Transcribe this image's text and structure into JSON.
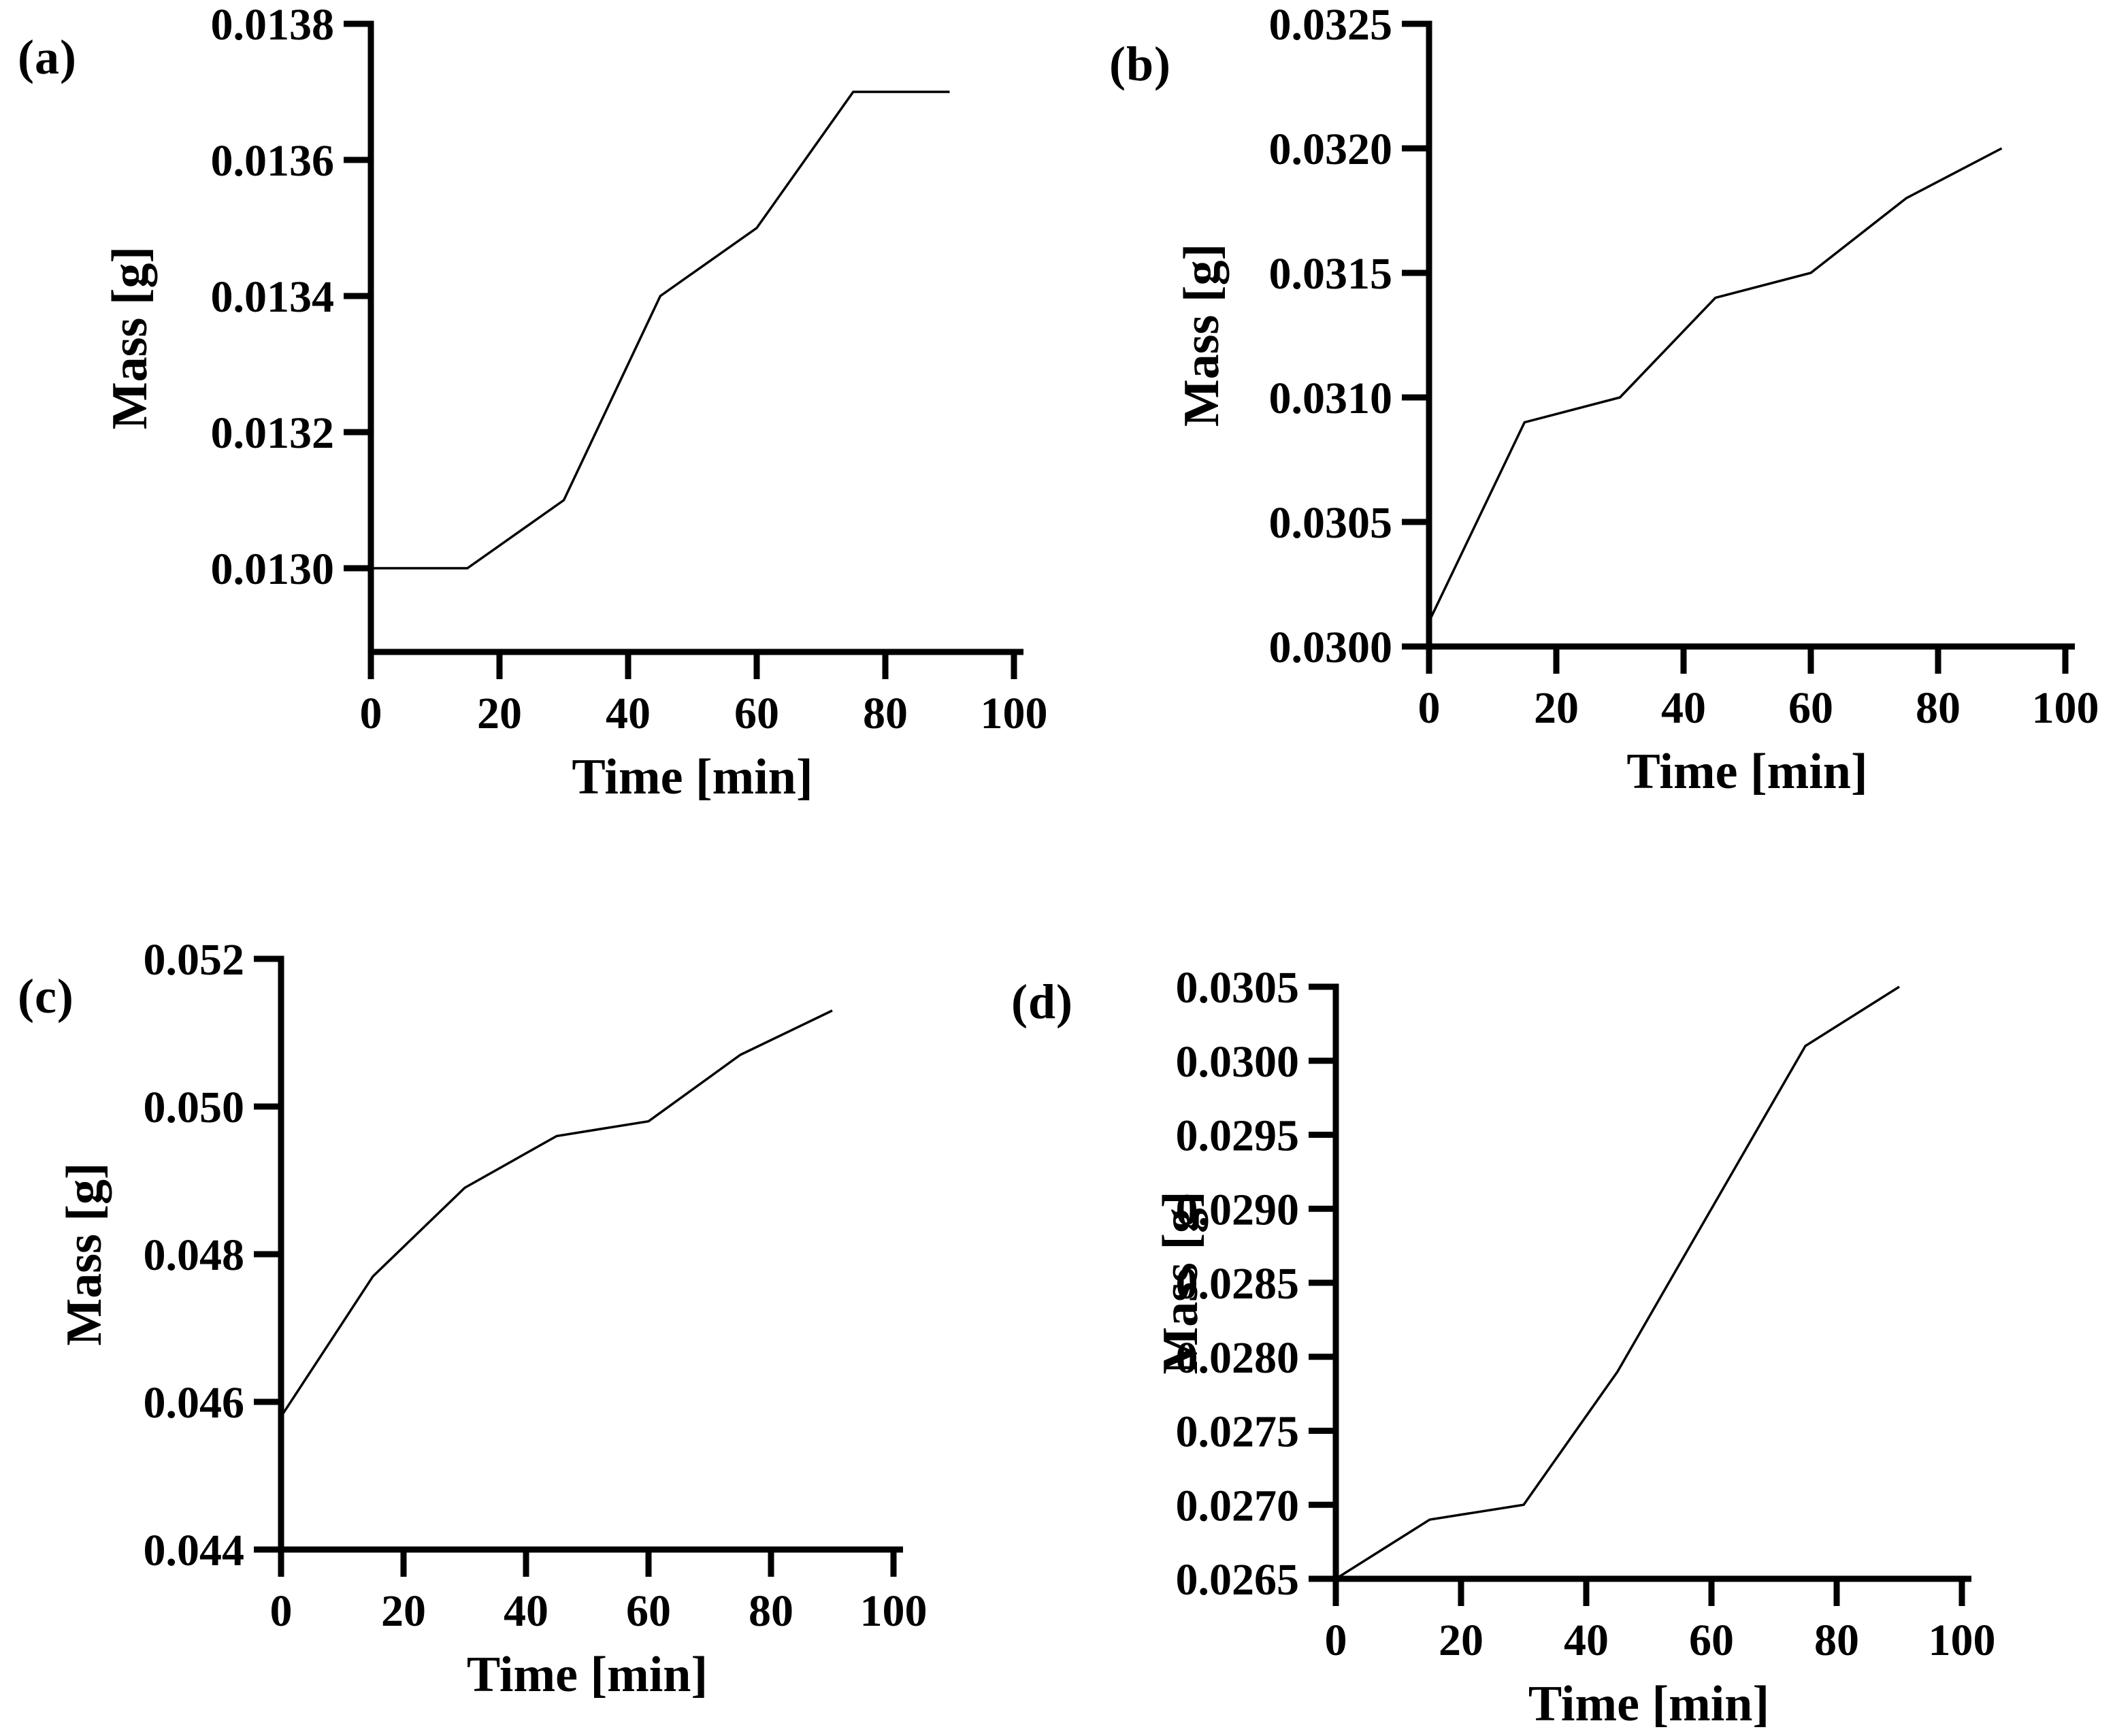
{
  "figure": {
    "background": "#ffffff",
    "line_color": "#000000",
    "axis_color": "#000000"
  },
  "chart_data": [
    {
      "type": "line",
      "panel_label": "(a)",
      "title": "",
      "xlabel": "Time [min]",
      "ylabel": "Mass [g]",
      "x": [
        0,
        15,
        30,
        45,
        60,
        75,
        90
      ],
      "y": [
        0.013,
        0.013,
        0.0131,
        0.0134,
        0.0135,
        0.0137,
        0.0137
      ],
      "x_ticks": [
        0,
        20,
        40,
        60,
        80,
        100
      ],
      "y_tick_labels": [
        "0.0138",
        "0.0136",
        "0.0134",
        "0.0132",
        "0.0130"
      ],
      "xlim": [
        0,
        101.5
      ],
      "ylim": [
        0.01288,
        0.0138
      ],
      "grid": false,
      "legend": "none"
    },
    {
      "type": "line",
      "panel_label": "(b)",
      "title": "",
      "xlabel": "Time [min]",
      "ylabel": "Mass [g]",
      "x": [
        0,
        15,
        30,
        45,
        60,
        75,
        90
      ],
      "y": [
        0.0301,
        0.0309,
        0.031,
        0.0314,
        0.0315,
        0.0318,
        0.032
      ],
      "x_ticks": [
        0,
        20,
        40,
        60,
        80,
        100
      ],
      "y_tick_labels": [
        "0.0325",
        "0.0320",
        "0.0315",
        "0.0310",
        "0.0305",
        "0.0300"
      ],
      "xlim": [
        0,
        101.5
      ],
      "ylim": [
        0.03,
        0.0325
      ],
      "grid": false,
      "legend": "none"
    },
    {
      "type": "line",
      "panel_label": "(c)",
      "title": "",
      "xlabel": "Time [min]",
      "ylabel": "Mass [g]",
      "x": [
        0,
        15,
        30,
        45,
        60,
        75,
        90
      ],
      "y": [
        0.0458,
        0.0477,
        0.0489,
        0.0496,
        0.0498,
        0.0507,
        0.0513
      ],
      "x_ticks": [
        0,
        20,
        40,
        60,
        80,
        100
      ],
      "y_tick_labels": [
        "0.052",
        "0.050",
        "0.048",
        "0.046",
        "0.044"
      ],
      "xlim": [
        0,
        101.5
      ],
      "ylim": [
        0.044,
        0.052
      ],
      "grid": false,
      "legend": "none"
    },
    {
      "type": "line",
      "panel_label": "(d)",
      "title": "",
      "xlabel": "Time [min]",
      "ylabel": "Mass [g]",
      "x": [
        0,
        15,
        30,
        45,
        60,
        75,
        90
      ],
      "y": [
        0.0265,
        0.0269,
        0.027,
        0.0279,
        0.029,
        0.0301,
        0.0305
      ],
      "x_ticks": [
        0,
        20,
        40,
        60,
        80,
        100
      ],
      "y_tick_labels": [
        "0.0305",
        "0.0300",
        "0.0295",
        "0.0290",
        "0.0285",
        "0.0280",
        "0.0275",
        "0.0270",
        "0.0265"
      ],
      "xlim": [
        0,
        101.5
      ],
      "ylim": [
        0.0265,
        0.0305
      ],
      "grid": false,
      "legend": "none"
    }
  ]
}
